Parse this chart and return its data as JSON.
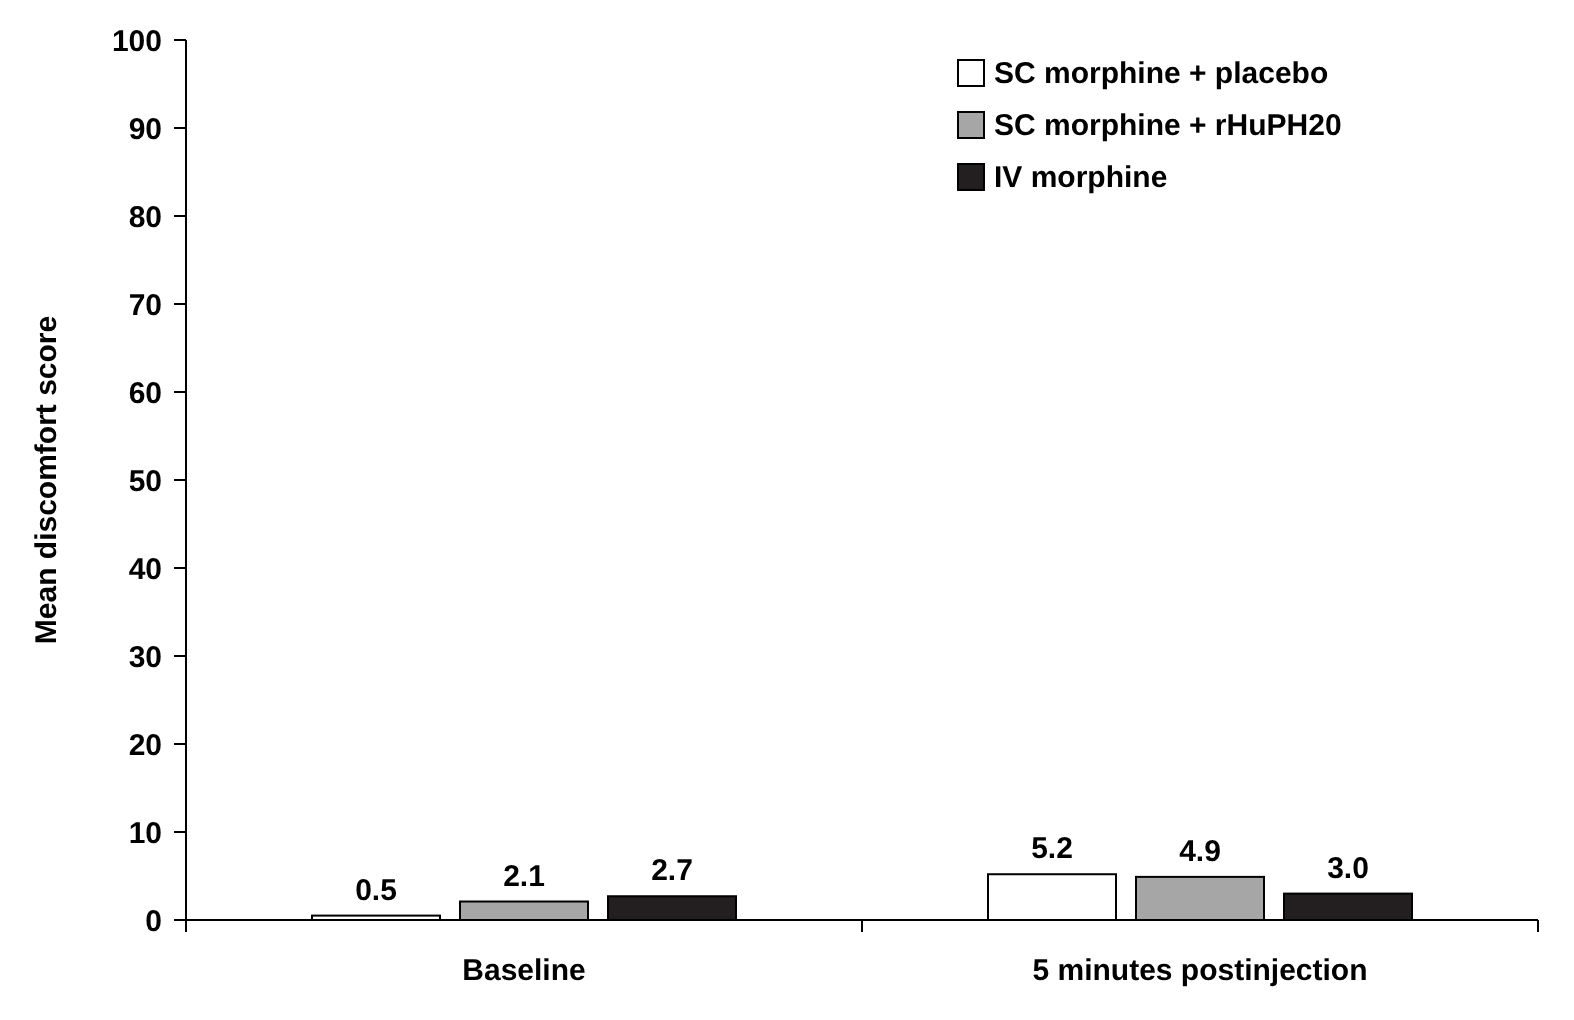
{
  "chart_data": {
    "type": "bar",
    "ylabel": "Mean discomfort score",
    "categories": [
      "Baseline",
      "5 minutes postinjection"
    ],
    "series": [
      {
        "name": "SC morphine + placebo",
        "color": "#ffffff",
        "values": [
          0.5,
          5.2
        ]
      },
      {
        "name": "SC morphine + rHuPH20",
        "color": "#a6a6a6",
        "values": [
          2.1,
          4.9
        ]
      },
      {
        "name": "IV morphine",
        "color": "#231f20",
        "values": [
          2.7,
          3.0
        ]
      }
    ],
    "value_labels": [
      [
        "0.5",
        "5.2"
      ],
      [
        "2.1",
        "4.9"
      ],
      [
        "2.7",
        "3.0"
      ]
    ],
    "ylim": [
      0,
      100
    ],
    "yticks": [
      0,
      10,
      20,
      30,
      40,
      50,
      60,
      70,
      80,
      90,
      100
    ],
    "legend": "top right",
    "grid": false
  }
}
